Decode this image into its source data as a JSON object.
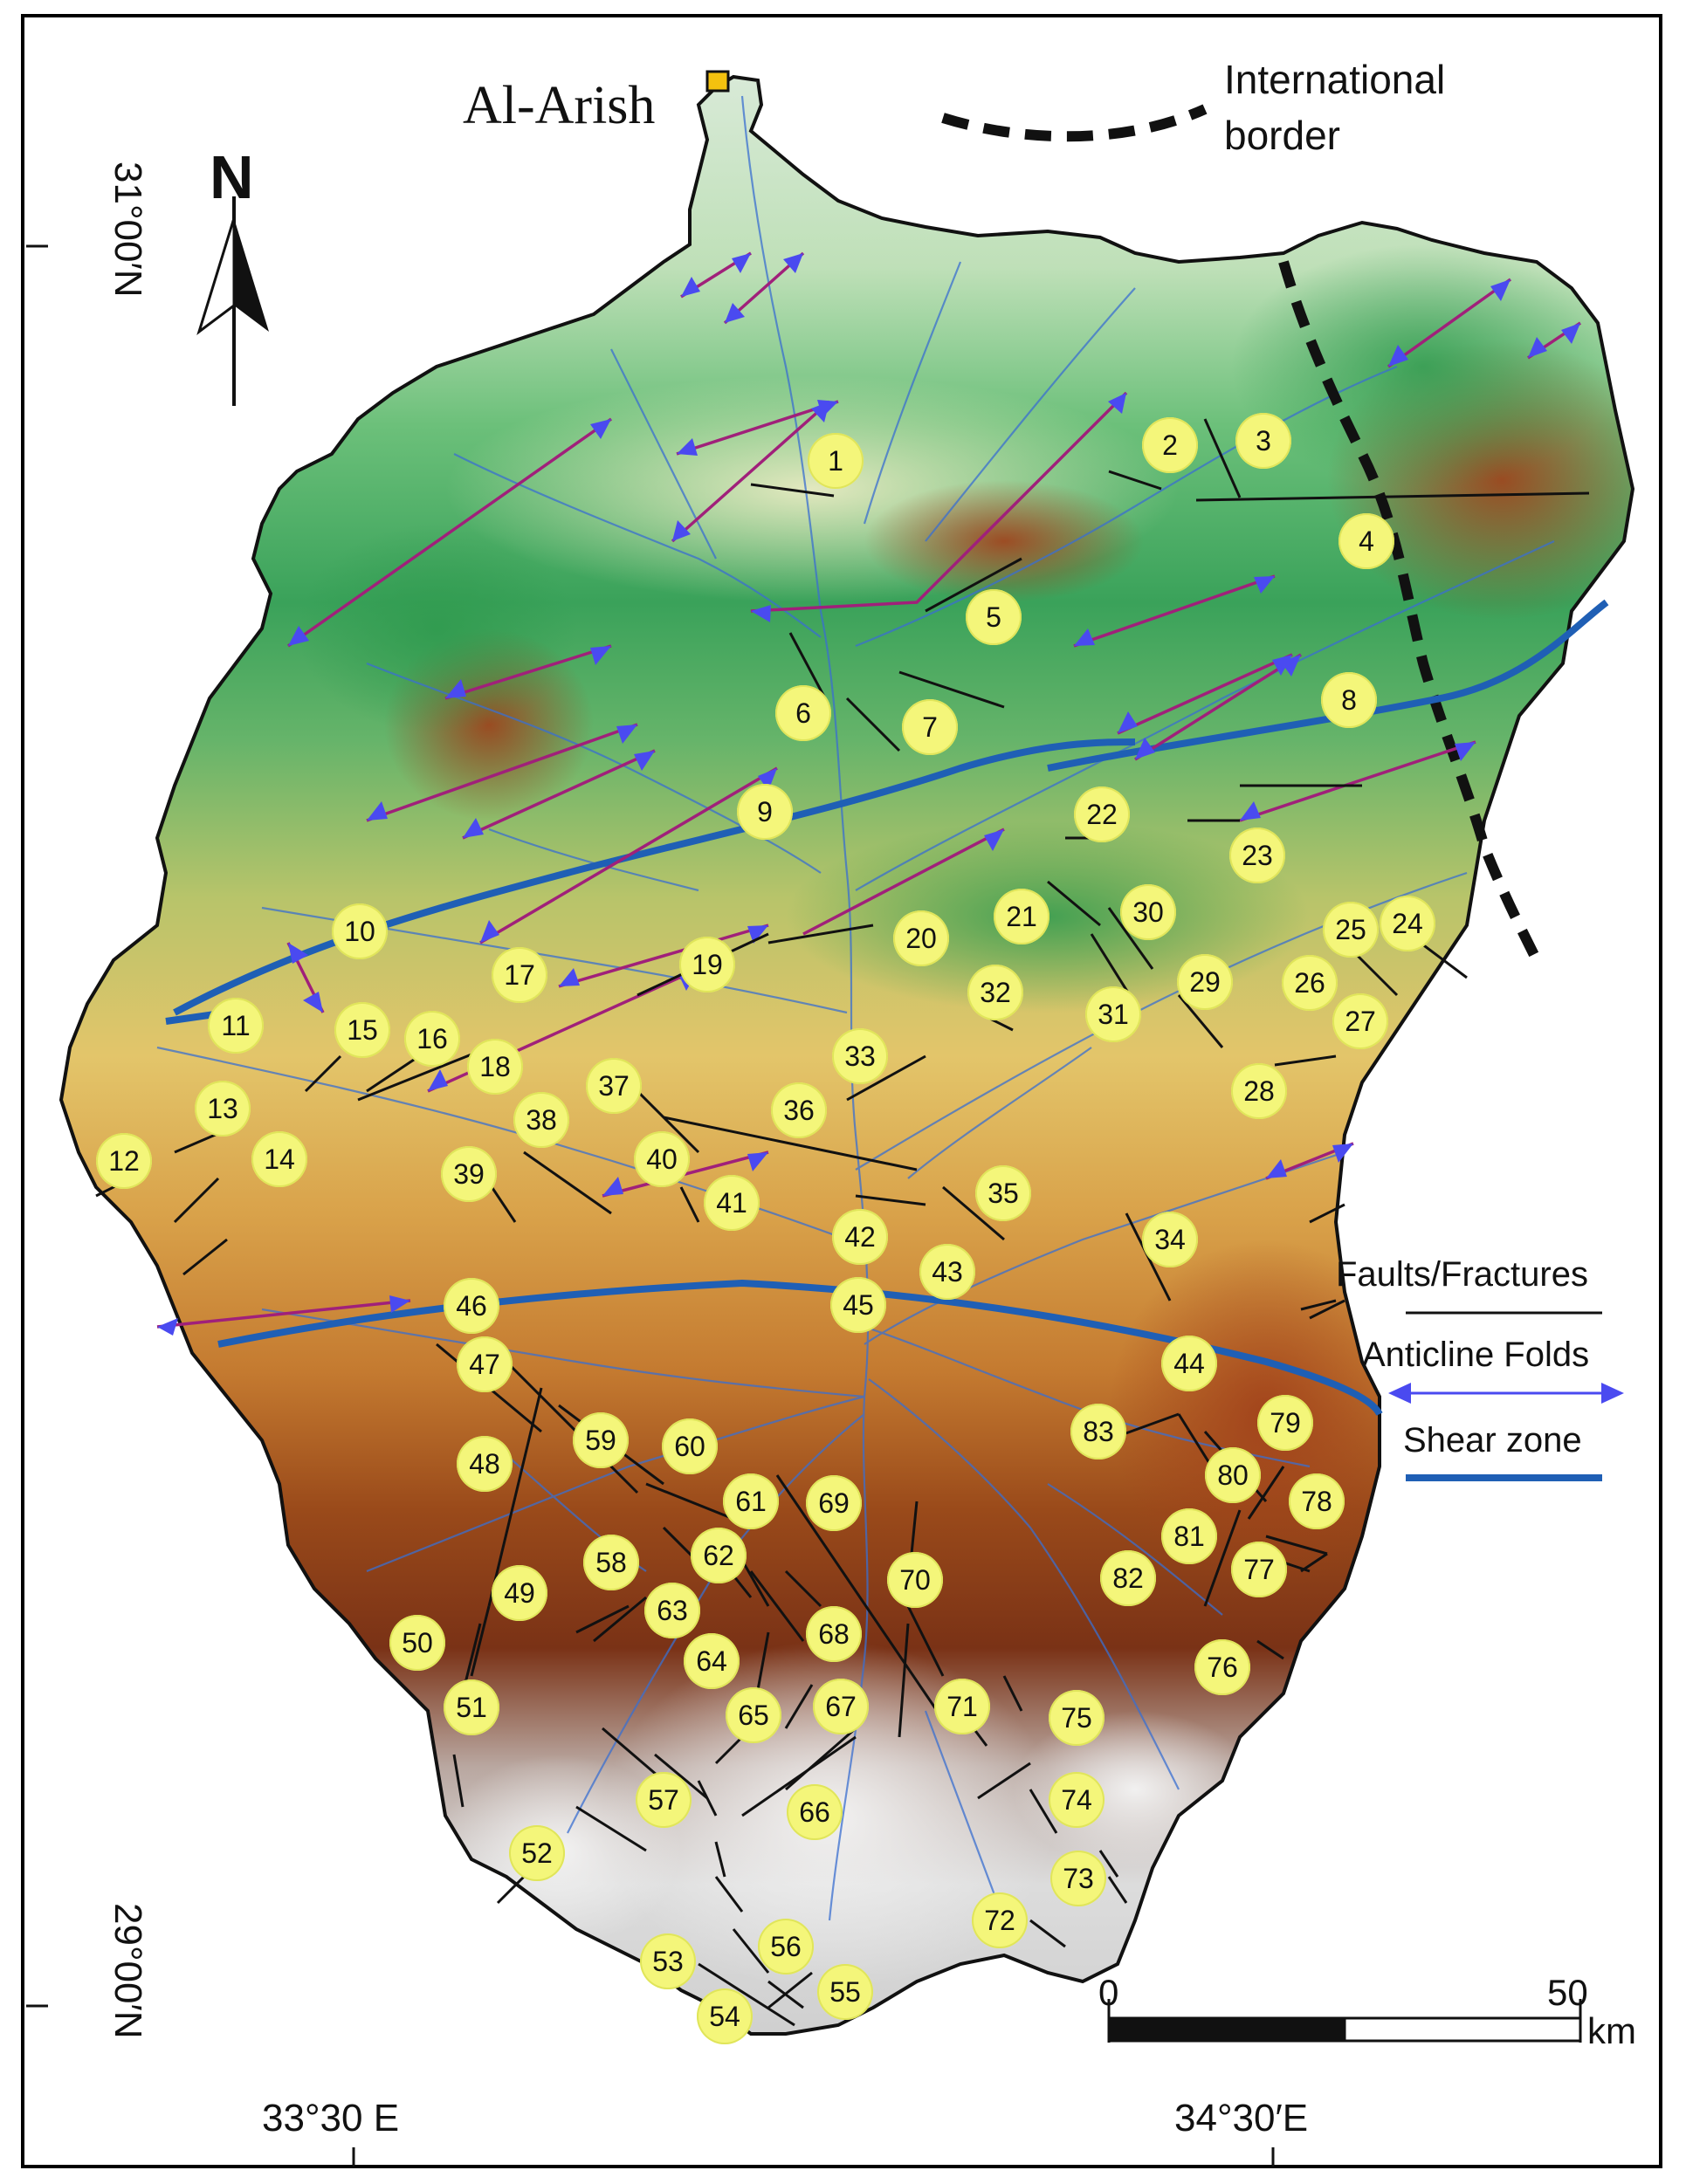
{
  "map": {
    "city_label": "Al-Arish",
    "border_label_line1": "International",
    "border_label_line2": "border",
    "north_label": "N",
    "lat_top": "31°00′N",
    "lat_bottom": "29°00′N",
    "lon_left": "33°30 E",
    "lon_right": "34°30′E",
    "scale_start": "0",
    "scale_end": "50",
    "scale_unit": "km"
  },
  "legend": {
    "faults": "Faults/Fractures",
    "folds": "Anticline Folds",
    "shear": "Shear zone"
  },
  "colors": {
    "shear_zone": "#1f5fb5",
    "fold_arrow": "#4a4af0",
    "fold_line": "#a0207a",
    "site_fill": "#f4f67a",
    "border_dash": "#111111",
    "stream": "#3a6fd0"
  },
  "sites": [
    "1",
    "2",
    "3",
    "4",
    "5",
    "6",
    "7",
    "8",
    "9",
    "10",
    "11",
    "12",
    "13",
    "14",
    "15",
    "16",
    "17",
    "18",
    "19",
    "20",
    "21",
    "22",
    "23",
    "24",
    "25",
    "26",
    "27",
    "28",
    "29",
    "30",
    "31",
    "32",
    "33",
    "34",
    "35",
    "36",
    "37",
    "38",
    "39",
    "40",
    "41",
    "42",
    "43",
    "44",
    "45",
    "46",
    "47",
    "48",
    "49",
    "50",
    "51",
    "52",
    "53",
    "54",
    "55",
    "56",
    "57",
    "58",
    "59",
    "60",
    "61",
    "62",
    "63",
    "64",
    "65",
    "66",
    "67",
    "68",
    "69",
    "70",
    "71",
    "72",
    "73",
    "74",
    "75",
    "76",
    "77",
    "78",
    "79",
    "80",
    "81",
    "82",
    "83"
  ]
}
